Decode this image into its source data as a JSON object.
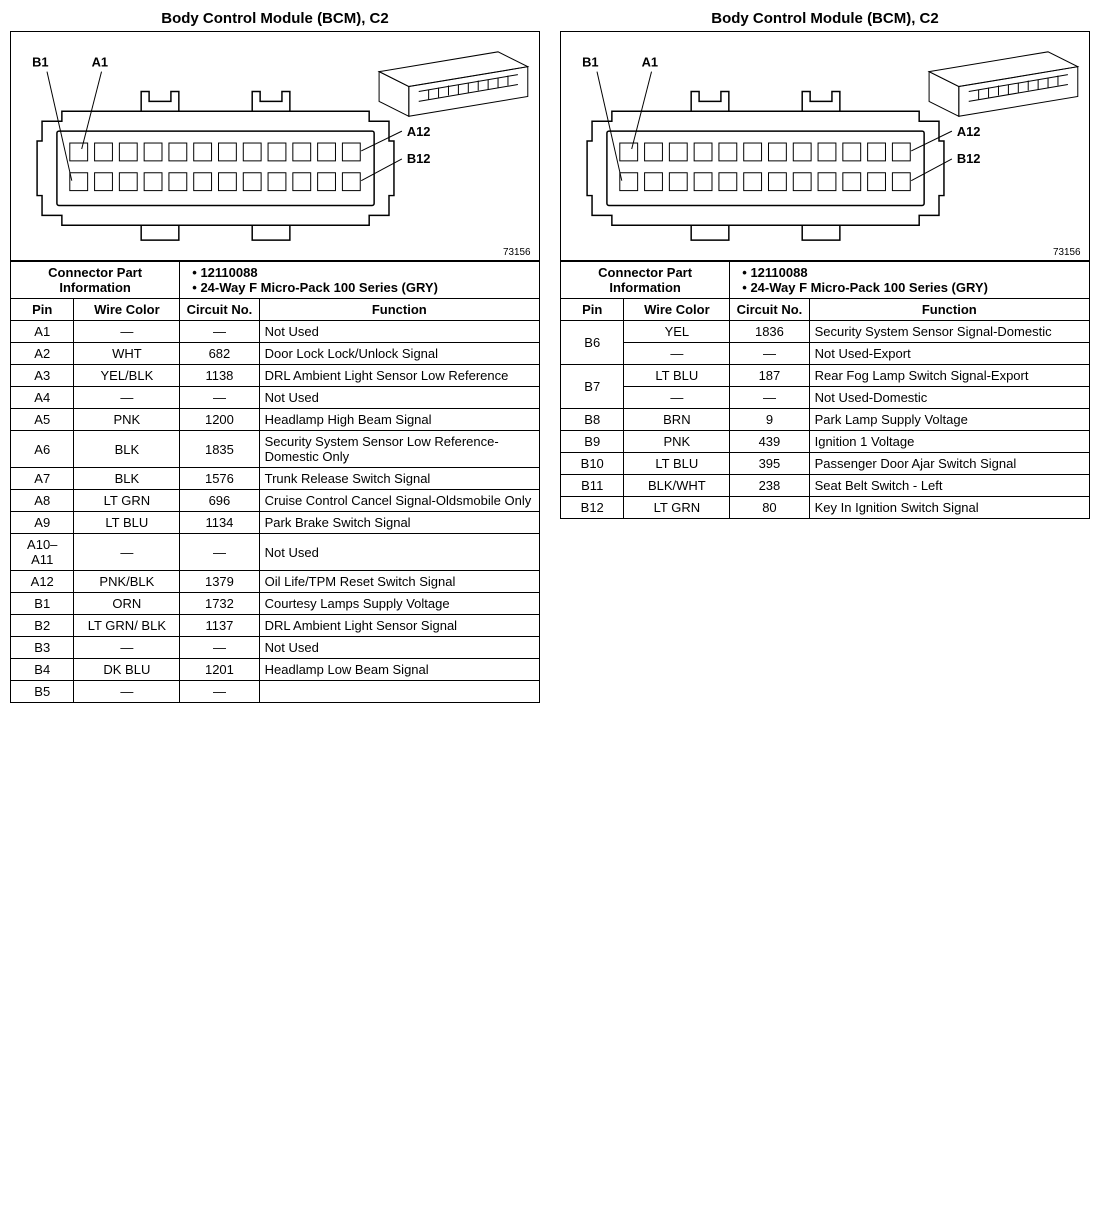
{
  "text_color": "#000000",
  "border_color": "#000000",
  "background_color": "#ffffff",
  "title_fontsize": 15,
  "body_fontsize": 13,
  "diagram_id": "73156",
  "connector_info_label": "Connector Part Information",
  "connector_part_no": "12110088",
  "connector_desc": "24-Way F Micro-Pack 100 Series (GRY)",
  "col_headers": {
    "pin": "Pin",
    "wire": "Wire Color",
    "circuit": "Circuit No.",
    "func": "Function"
  },
  "callouts": {
    "b1": "B1",
    "a1": "A1",
    "a12": "A12",
    "b12": "B12"
  },
  "left": {
    "title": "Body Control Module (BCM), C2",
    "rows": [
      {
        "pin": "A1",
        "wire": "—",
        "circuit": "—",
        "func": "Not Used"
      },
      {
        "pin": "A2",
        "wire": "WHT",
        "circuit": "682",
        "func": "Door Lock Lock/Unlock Signal"
      },
      {
        "pin": "A3",
        "wire": "YEL/BLK",
        "circuit": "1138",
        "func": "DRL Ambient Light Sensor Low Reference"
      },
      {
        "pin": "A4",
        "wire": "—",
        "circuit": "—",
        "func": "Not Used"
      },
      {
        "pin": "A5",
        "wire": "PNK",
        "circuit": "1200",
        "func": "Headlamp High Beam Signal"
      },
      {
        "pin": "A6",
        "wire": "BLK",
        "circuit": "1835",
        "func": "Security System Sensor Low Reference-Domestic Only"
      },
      {
        "pin": "A7",
        "wire": "BLK",
        "circuit": "1576",
        "func": "Trunk Release Switch Signal"
      },
      {
        "pin": "A8",
        "wire": "LT GRN",
        "circuit": "696",
        "func": "Cruise Control Cancel Signal-Oldsmobile Only"
      },
      {
        "pin": "A9",
        "wire": "LT BLU",
        "circuit": "1134",
        "func": "Park Brake Switch Signal"
      },
      {
        "pin": "A10–A11",
        "wire": "—",
        "circuit": "—",
        "func": "Not Used"
      },
      {
        "pin": "A12",
        "wire": "PNK/BLK",
        "circuit": "1379",
        "func": "Oil Life/TPM Reset Switch Signal"
      },
      {
        "pin": "B1",
        "wire": "ORN",
        "circuit": "1732",
        "func": "Courtesy Lamps Supply Voltage"
      },
      {
        "pin": "B2",
        "wire": "LT GRN/ BLK",
        "circuit": "1137",
        "func": "DRL Ambient Light Sensor Signal"
      },
      {
        "pin": "B3",
        "wire": "—",
        "circuit": "—",
        "func": "Not Used"
      },
      {
        "pin": "B4",
        "wire": "DK BLU",
        "circuit": "1201",
        "func": "Headlamp Low Beam Signal"
      },
      {
        "pin": "B5",
        "wire": "—",
        "circuit": "—",
        "func": ""
      }
    ]
  },
  "right": {
    "title": "Body Control Module (BCM), C2",
    "rows": [
      {
        "pin": "B6",
        "wire": "YEL",
        "circuit": "1836",
        "func": "Security System Sensor Signal-Domestic",
        "merge": true
      },
      {
        "pin": "",
        "wire": "—",
        "circuit": "—",
        "func": "Not Used-Export"
      },
      {
        "pin": "B7",
        "wire": "LT BLU",
        "circuit": "187",
        "func": "Rear Fog Lamp Switch Signal-Export",
        "merge": true
      },
      {
        "pin": "",
        "wire": "—",
        "circuit": "—",
        "func": "Not Used-Domestic"
      },
      {
        "pin": "B8",
        "wire": "BRN",
        "circuit": "9",
        "func": "Park Lamp Supply Voltage"
      },
      {
        "pin": "B9",
        "wire": "PNK",
        "circuit": "439",
        "func": "Ignition 1 Voltage"
      },
      {
        "pin": "B10",
        "wire": "LT BLU",
        "circuit": "395",
        "func": "Passenger Door Ajar Switch Signal"
      },
      {
        "pin": "B11",
        "wire": "BLK/WHT",
        "circuit": "238",
        "func": "Seat Belt Switch - Left"
      },
      {
        "pin": "B12",
        "wire": "LT GRN",
        "circuit": "80",
        "func": "Key In Ignition Switch Signal"
      }
    ]
  }
}
